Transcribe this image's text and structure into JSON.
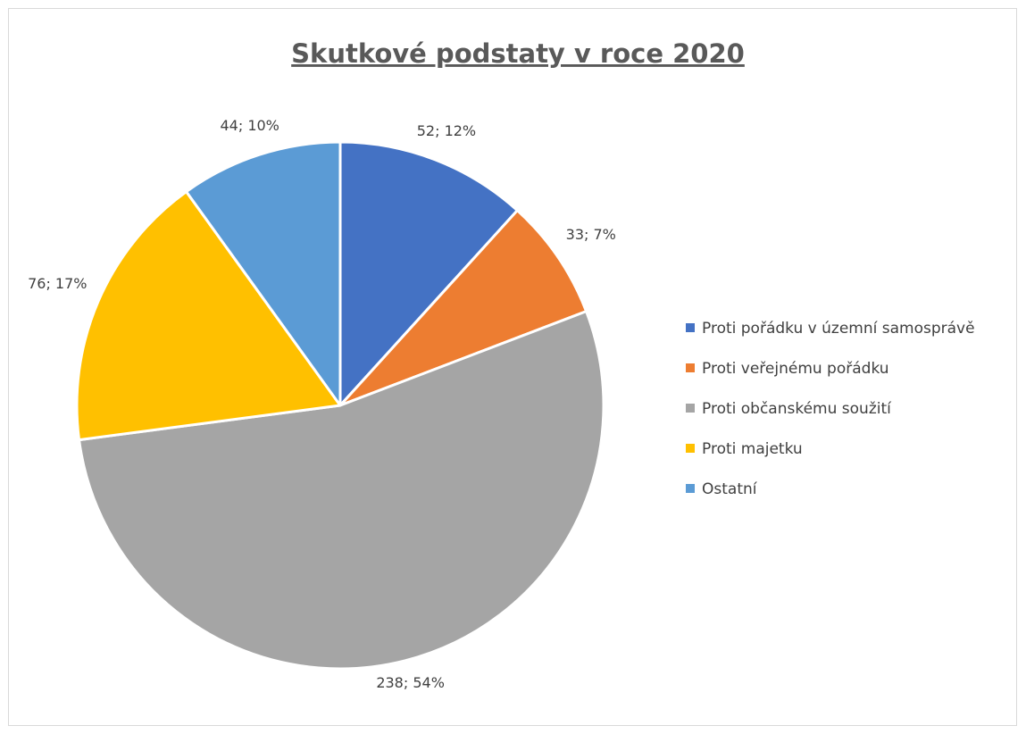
{
  "chart_data": {
    "type": "pie",
    "title": "Skutkové podstaty v roce 2020",
    "categories": [
      "Proti pořádku v územní samosprávě",
      "Proti veřejnému pořádku",
      "Proti občanskému soužití",
      "Proti majetku",
      "Ostatní"
    ],
    "values": [
      52,
      33,
      238,
      76,
      44
    ],
    "percents": [
      12,
      7,
      54,
      17,
      10
    ],
    "data_labels": [
      "52; 12%",
      "33; 7%",
      "238; 54%",
      "76; 17%",
      "44; 10%"
    ],
    "colors": [
      "#4472C4",
      "#ED7D31",
      "#A5A5A5",
      "#FFC000",
      "#5B9BD5"
    ],
    "legend_position": "right",
    "start_angle": "12 o'clock",
    "direction": "clockwise"
  }
}
